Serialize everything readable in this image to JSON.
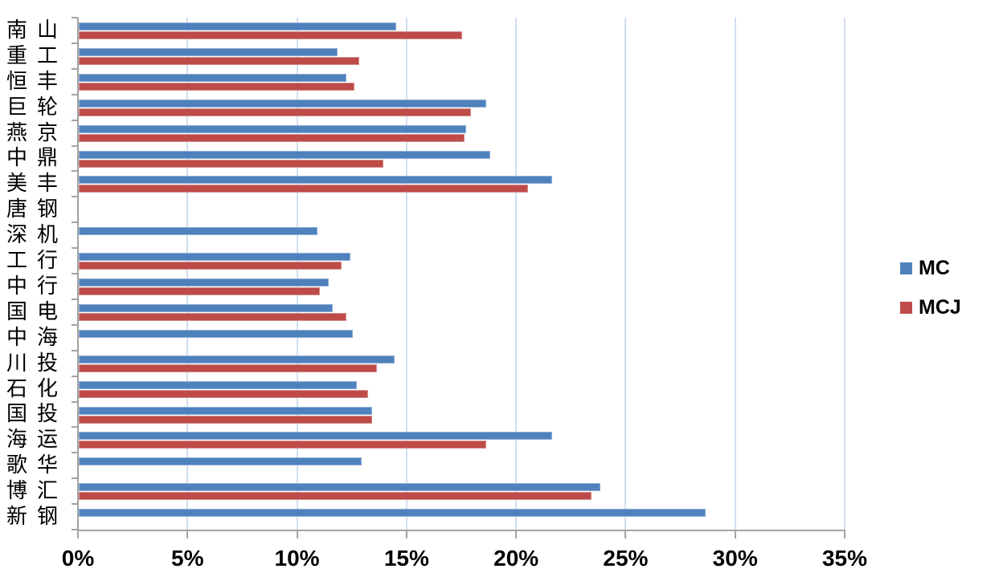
{
  "chart_data": {
    "type": "bar",
    "orientation": "horizontal",
    "title": "",
    "xlabel": "",
    "ylabel": "",
    "xlim": [
      0,
      35
    ],
    "x_tick_step": 5,
    "x_tick_labels": [
      "0%",
      "5%",
      "10%",
      "15%",
      "20%",
      "25%",
      "30%",
      "35%"
    ],
    "grid": true,
    "legend_position": "right",
    "categories": [
      "南山",
      "重工",
      "恒丰",
      "巨轮",
      "燕京",
      "中鼎",
      "美丰",
      "唐钢",
      "深机",
      "工行",
      "中行",
      "国电",
      "中海",
      "川投",
      "石化",
      "国投",
      "海运",
      "歌华",
      "博汇",
      "新钢"
    ],
    "series": [
      {
        "name": "MC",
        "color": "#4f81bd",
        "values": [
          14.5,
          11.8,
          12.2,
          18.6,
          17.7,
          18.8,
          21.6,
          null,
          10.9,
          12.4,
          11.4,
          11.6,
          12.5,
          14.4,
          12.7,
          13.4,
          21.6,
          12.9,
          23.8,
          28.6
        ]
      },
      {
        "name": "MCJ",
        "color": "#be4b48",
        "values": [
          17.5,
          12.8,
          12.6,
          17.9,
          17.6,
          13.9,
          20.5,
          null,
          null,
          12.0,
          11.0,
          12.2,
          null,
          13.6,
          13.2,
          13.4,
          18.6,
          null,
          23.4,
          null
        ]
      }
    ]
  },
  "legend": {
    "items": [
      {
        "label": "MC",
        "color": "#4f81bd"
      },
      {
        "label": "MCJ",
        "color": "#be4b48"
      }
    ]
  },
  "colors": {
    "bar_blue": "#4f81bd",
    "bar_red": "#be4b48",
    "gridline": "#d2ddf0",
    "axis": "#a3a3a3",
    "text": "#000000",
    "background": "#ffffff"
  }
}
